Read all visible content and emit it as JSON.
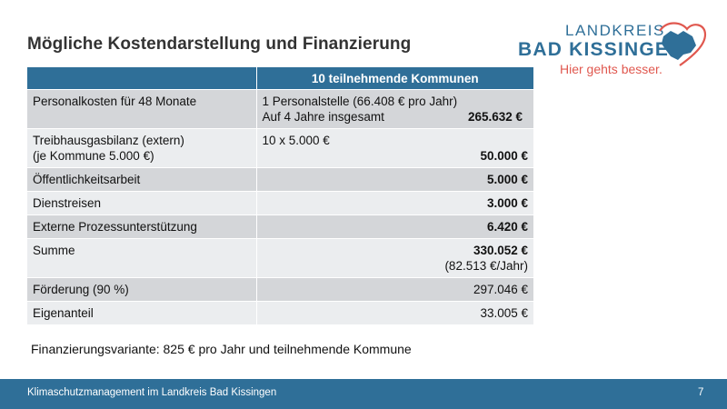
{
  "slide": {
    "title": "Mögliche Kostendarstellung und Finanzierung",
    "note": "Finanzierungsvariante: 825 € pro Jahr und teilnehmende Kommune"
  },
  "logo": {
    "line1": "LANDKREIS",
    "line2": "BAD KISSINGEN",
    "tagline": "Hier gehts besser.",
    "brand_blue": "#2f6f98",
    "accent_red": "#e0584f",
    "icon": "county-map-heart-icon"
  },
  "table": {
    "header": [
      "",
      "10 teilnehmende Kommunen"
    ],
    "rows": [
      {
        "label": "Personalkosten für 48 Monate",
        "line1": "1 Personalstelle (66.408 € pro Jahr)",
        "line2": "Auf 4 Jahre insgesamt",
        "amount": "265.632 €"
      },
      {
        "label": "Treibhausgasbilanz (extern)",
        "label2": "(je Kommune 5.000 €)",
        "line1": "10 x 5.000 €",
        "amount": "50.000 €"
      },
      {
        "label": "Öffentlichkeitsarbeit",
        "amount": "5.000 €"
      },
      {
        "label": "Dienstreisen",
        "amount": "3.000 €"
      },
      {
        "label": "Externe Prozessunterstützung",
        "amount": "6.420 €"
      },
      {
        "label": "Summe",
        "amount": "330.052 €",
        "sub": "(82.513 €/Jahr)"
      },
      {
        "label": "Förderung (90 %)",
        "amount": "297.046 €"
      },
      {
        "label": "Eigenanteil",
        "amount": "33.005 €"
      }
    ]
  },
  "footer": {
    "text": "Klimaschutzmanagement im Landkreis Bad Kissingen",
    "page_number": "7",
    "color": "#2f6f98"
  }
}
